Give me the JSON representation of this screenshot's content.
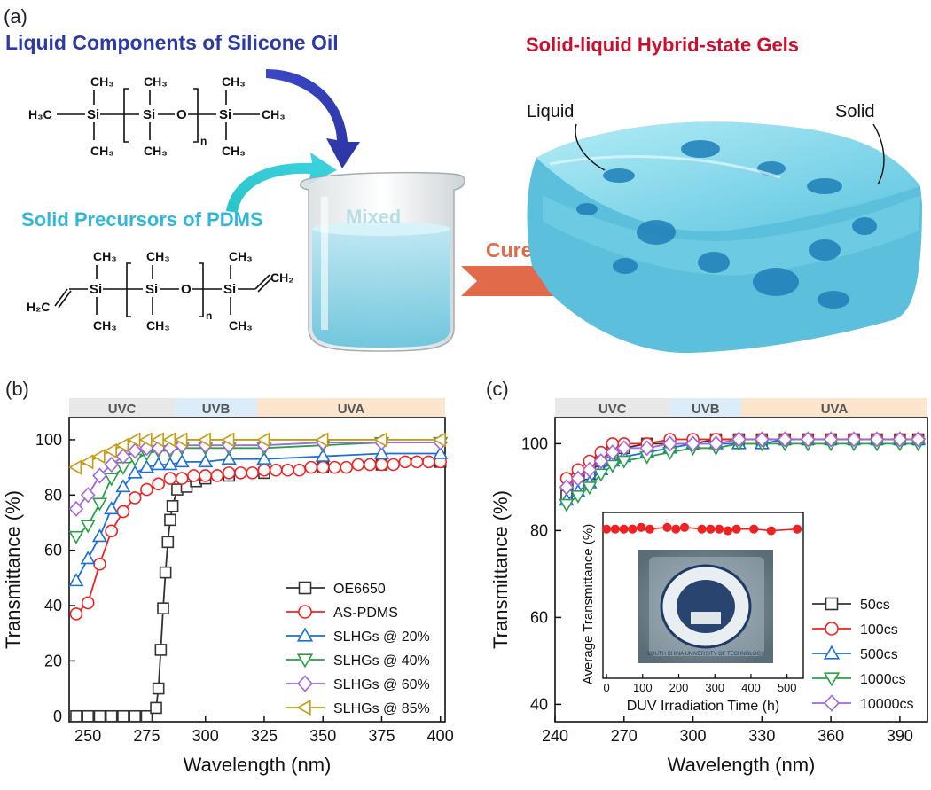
{
  "panel_a": {
    "label": "(a)",
    "title_liquid": "Liquid Components of Silicone Oil",
    "title_solid_precursors": "Solid Precursors of PDMS",
    "title_gels": "Solid-liquid Hybrid-state Gels",
    "mixed_label": "Mixed",
    "cured_label": "Cured",
    "liquid_label": "Liquid",
    "solid_label": "Solid",
    "chem": {
      "ch3": "CH₃",
      "h3c": "H₃C",
      "si": "Si",
      "o": "O",
      "n": "n",
      "ch2": "CH₂",
      "h2c": "H₂C"
    },
    "colors": {
      "liquid_title": "#2b3aa8",
      "solid_title": "#2fb8d8",
      "gels_title": "#c8102e",
      "cured": "#e06a4a",
      "gel_body": "#7fd6ea",
      "gel_dark": "#1f7fb8"
    }
  },
  "chart_data": [
    {
      "type": "line",
      "panel_label": "(b)",
      "xlabel": "Wavelength (nm)",
      "ylabel": "Transmittance (%)",
      "xlim": [
        242,
        402
      ],
      "ylim": [
        -2,
        108
      ],
      "xticks": [
        250,
        275,
        300,
        325,
        350,
        375,
        400
      ],
      "yticks": [
        0,
        20,
        40,
        60,
        80,
        100
      ],
      "bands": [
        {
          "label": "UVC",
          "from": 242,
          "to": 287,
          "color": "#e8e8e8"
        },
        {
          "label": "UVB",
          "from": 287,
          "to": 322,
          "color": "#dcecf8"
        },
        {
          "label": "UVA",
          "from": 322,
          "to": 402,
          "color": "#fbe5cc"
        }
      ],
      "legend_position": "bottom-right",
      "series": [
        {
          "name": "OE6650",
          "color": "#333333",
          "marker": "square",
          "x": [
            245,
            250,
            255,
            260,
            265,
            270,
            275,
            279,
            280,
            281,
            282,
            283,
            284,
            285,
            286,
            288,
            292,
            296,
            300,
            310,
            325,
            350,
            375,
            400
          ],
          "y": [
            0,
            0,
            0,
            0,
            0,
            0,
            0,
            3,
            10,
            24,
            39,
            52,
            63,
            71,
            76,
            82,
            83,
            85,
            86,
            87,
            88,
            90,
            91,
            92
          ]
        },
        {
          "name": "AS-PDMS",
          "color": "#ee2222",
          "marker": "circle",
          "x": [
            245,
            250,
            255,
            260,
            265,
            270,
            275,
            280,
            285,
            290,
            295,
            300,
            305,
            310,
            315,
            320,
            325,
            330,
            335,
            340,
            345,
            350,
            355,
            360,
            365,
            370,
            375,
            380,
            385,
            390,
            395,
            400
          ],
          "y": [
            37,
            41,
            55,
            67,
            74,
            79,
            82,
            84,
            86,
            86,
            87,
            87,
            87,
            88,
            88,
            88,
            89,
            89,
            89,
            89,
            90,
            90,
            90,
            90,
            91,
            91,
            91,
            91,
            92,
            92,
            92,
            92
          ]
        },
        {
          "name": "SLHGs @ 20%",
          "color": "#1a6fd8",
          "marker": "triangle-up",
          "x": [
            245,
            250,
            255,
            260,
            265,
            270,
            275,
            280,
            285,
            290,
            300,
            310,
            325,
            350,
            375,
            400
          ],
          "y": [
            49,
            57,
            65,
            75,
            83,
            88,
            90,
            91,
            91,
            92,
            92,
            93,
            93,
            94,
            95,
            95
          ]
        },
        {
          "name": "SLHGs @ 40%",
          "color": "#2aa04a",
          "marker": "triangle-down",
          "x": [
            245,
            250,
            255,
            260,
            265,
            270,
            275,
            280,
            285,
            290,
            300,
            310,
            325,
            350,
            375,
            400
          ],
          "y": [
            65,
            69,
            77,
            86,
            90,
            93,
            95,
            96,
            96,
            97,
            97,
            97,
            97,
            98,
            99,
            99
          ]
        },
        {
          "name": "SLHGs @ 60%",
          "color": "#a466d8",
          "marker": "diamond",
          "x": [
            245,
            250,
            255,
            260,
            265,
            270,
            275,
            280,
            285,
            290,
            300,
            310,
            325,
            350,
            375,
            400
          ],
          "y": [
            75,
            80,
            87,
            91,
            94,
            96,
            97,
            97,
            97,
            98,
            98,
            98,
            98,
            99,
            99,
            99
          ]
        },
        {
          "name": "SLHGs  @ 85%",
          "color": "#c89a10",
          "marker": "triangle-left",
          "x": [
            245,
            250,
            255,
            260,
            265,
            270,
            275,
            280,
            285,
            290,
            300,
            310,
            325,
            350,
            375,
            400
          ],
          "y": [
            90,
            92,
            94,
            96,
            98,
            100,
            100,
            100,
            100,
            100,
            100,
            100,
            100,
            100,
            100,
            100
          ]
        }
      ]
    },
    {
      "type": "line",
      "panel_label": "(c)",
      "xlabel": "Wavelength (nm)",
      "ylabel": "Transmittance (%)",
      "xlim": [
        240,
        402
      ],
      "ylim": [
        36,
        106
      ],
      "xticks": [
        240,
        270,
        300,
        330,
        360,
        390
      ],
      "yticks": [
        40,
        60,
        80,
        100
      ],
      "bands": [
        {
          "label": "UVC",
          "from": 240,
          "to": 290,
          "color": "#e8e8e8"
        },
        {
          "label": "UVB",
          "from": 290,
          "to": 321,
          "color": "#dcecf8"
        },
        {
          "label": "UVA",
          "from": 321,
          "to": 402,
          "color": "#fbe5cc"
        }
      ],
      "legend_position": "bottom-right",
      "series": [
        {
          "name": "50cs",
          "color": "#333333",
          "marker": "square",
          "x": [
            245,
            250,
            255,
            260,
            265,
            270,
            280,
            290,
            300,
            310,
            320,
            330,
            340,
            350,
            360,
            370,
            380,
            390,
            398
          ],
          "y": [
            88,
            90,
            93,
            96,
            98,
            99,
            100,
            100,
            100,
            101,
            101,
            101,
            101,
            101,
            101,
            101,
            101,
            101,
            101
          ]
        },
        {
          "name": "100cs",
          "color": "#ee2222",
          "marker": "circle",
          "x": [
            245,
            250,
            255,
            260,
            265,
            270,
            280,
            290,
            300,
            310,
            320,
            330,
            340,
            350,
            360,
            370,
            380,
            390,
            398
          ],
          "y": [
            92,
            94,
            96,
            98,
            100,
            100,
            100,
            101,
            101,
            101,
            101,
            101,
            101,
            101,
            101,
            101,
            101,
            101,
            101
          ]
        },
        {
          "name": "500cs",
          "color": "#1a6fd8",
          "marker": "triangle-up",
          "x": [
            245,
            250,
            255,
            260,
            265,
            270,
            280,
            290,
            300,
            310,
            320,
            330,
            340,
            350,
            360,
            370,
            380,
            390,
            398
          ],
          "y": [
            87,
            89,
            91,
            94,
            96,
            97,
            98,
            99,
            100,
            100,
            100,
            100,
            101,
            101,
            101,
            101,
            101,
            101,
            101
          ]
        },
        {
          "name": "1000cs",
          "color": "#2aa04a",
          "marker": "triangle-down",
          "x": [
            245,
            250,
            255,
            260,
            265,
            270,
            280,
            290,
            300,
            310,
            320,
            330,
            340,
            350,
            360,
            370,
            380,
            390,
            398
          ],
          "y": [
            86,
            88,
            90,
            93,
            95,
            96,
            97,
            98,
            99,
            99,
            100,
            100,
            100,
            100,
            100,
            100,
            100,
            100,
            100
          ]
        },
        {
          "name": "10000cs",
          "color": "#a466d8",
          "marker": "diamond",
          "x": [
            245,
            250,
            255,
            260,
            265,
            270,
            280,
            290,
            300,
            310,
            320,
            330,
            340,
            350,
            360,
            370,
            380,
            390,
            398
          ],
          "y": [
            90,
            92,
            94,
            96,
            98,
            99,
            99,
            100,
            100,
            100,
            101,
            101,
            101,
            101,
            101,
            101,
            101,
            101,
            101
          ]
        }
      ],
      "inset": {
        "type": "line",
        "xlabel": "DUV Irradiation Time (h)",
        "ylabel": "Average Transmittance (%)",
        "xlim": [
          -10,
          545
        ],
        "ylim": [
          0,
          100
        ],
        "xticks": [
          0,
          100,
          200,
          300,
          400,
          500
        ],
        "series": [
          {
            "name": "Average Transmittance",
            "color": "#ee2222",
            "marker": "filled-circle",
            "x": [
              0,
              24,
              48,
              72,
              96,
              120,
              168,
              192,
              216,
              264,
              288,
              312,
              336,
              360,
              408,
              456,
              528
            ],
            "y": [
              90,
              90,
              90,
              90,
              91,
              90,
              91,
              90,
              91,
              90,
              90,
              90,
              89,
              90,
              90,
              89,
              90
            ]
          }
        ],
        "photo_text": "SOUTH CHINA UNIVERSITY OF TECHNOLOGY"
      }
    }
  ]
}
